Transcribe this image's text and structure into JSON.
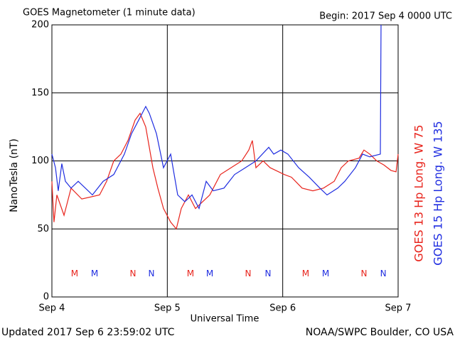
{
  "chart_data": {
    "type": "line",
    "title": "GOES Magnetometer (1 minute data)",
    "subtitle": "Begin:  2017 Sep 4 0000 UTC",
    "y_label": "NanoTesla (nT)",
    "x_label": "Universal Time",
    "footer_left": "Updated 2017 Sep  6 23:59:02 UTC",
    "footer_right": "NOAA/SWPC Boulder, CO USA",
    "xlim": [
      0,
      3
    ],
    "xticks": [
      {
        "value": 0,
        "label": "Sep 4"
      },
      {
        "value": 1,
        "label": "Sep 5"
      },
      {
        "value": 2,
        "label": "Sep 6"
      },
      {
        "value": 3,
        "label": "Sep 7"
      }
    ],
    "ylim": [
      0,
      200
    ],
    "yticks": [
      0,
      50,
      100,
      150,
      200
    ],
    "grid": true,
    "series": [
      {
        "name": "GOES 13 Hp  Long. W 75",
        "color": "#e8241c",
        "x": [
          0,
          0.018,
          0.043,
          0.105,
          0.166,
          0.259,
          0.413,
          0.474,
          0.536,
          0.598,
          0.659,
          0.721,
          0.764,
          0.813,
          0.844,
          0.875,
          0.918,
          0.967,
          1.029,
          1.078,
          1.121,
          1.183,
          1.244,
          1.306,
          1.368,
          1.46,
          1.552,
          1.645,
          1.706,
          1.737,
          1.768,
          1.83,
          1.891,
          2.014,
          2.076,
          2.168,
          2.261,
          2.353,
          2.446,
          2.507,
          2.569,
          2.661,
          2.704,
          2.754,
          2.815,
          2.877,
          2.938,
          2.982,
          3
        ],
        "values": [
          85,
          55,
          75,
          60,
          80,
          72,
          75,
          85,
          100,
          105,
          115,
          130,
          135,
          125,
          110,
          95,
          80,
          65,
          55,
          50,
          65,
          75,
          65,
          70,
          75,
          90,
          95,
          100,
          108,
          115,
          95,
          100,
          95,
          90,
          88,
          80,
          78,
          80,
          85,
          95,
          100,
          102,
          108,
          105,
          100,
          97,
          93,
          92,
          105
        ]
      },
      {
        "name": "GOES 15 Hp  Long. W 135",
        "color": "#1f2de0",
        "x": [
          0,
          0.031,
          0.055,
          0.086,
          0.117,
          0.166,
          0.228,
          0.351,
          0.444,
          0.536,
          0.628,
          0.69,
          0.752,
          0.813,
          0.844,
          0.906,
          0.967,
          1.029,
          1.09,
          1.152,
          1.214,
          1.275,
          1.337,
          1.398,
          1.491,
          1.583,
          1.676,
          1.768,
          1.879,
          1.922,
          1.984,
          2.045,
          2.138,
          2.23,
          2.322,
          2.384,
          2.477,
          2.538,
          2.63,
          2.692,
          2.754,
          2.846,
          2.852
        ],
        "values": [
          105,
          95,
          78,
          98,
          85,
          80,
          85,
          75,
          85,
          90,
          105,
          120,
          130,
          140,
          135,
          120,
          95,
          105,
          75,
          70,
          75,
          65,
          85,
          78,
          80,
          90,
          95,
          100,
          110,
          105,
          108,
          105,
          95,
          88,
          80,
          75,
          80,
          85,
          95,
          105,
          103,
          105,
          200
        ]
      }
    ],
    "annotations": [
      {
        "text": "M",
        "x": 0.197,
        "y": 17,
        "color": "#e8241c"
      },
      {
        "text": "M",
        "x": 0.37,
        "y": 17,
        "color": "#1f2de0"
      },
      {
        "text": "N",
        "x": 0.702,
        "y": 17,
        "color": "#e8241c"
      },
      {
        "text": "N",
        "x": 0.862,
        "y": 17,
        "color": "#1f2de0"
      },
      {
        "text": "M",
        "x": 1.201,
        "y": 17,
        "color": "#e8241c"
      },
      {
        "text": "M",
        "x": 1.368,
        "y": 17,
        "color": "#1f2de0"
      },
      {
        "text": "N",
        "x": 1.7,
        "y": 17,
        "color": "#e8241c"
      },
      {
        "text": "N",
        "x": 1.873,
        "y": 17,
        "color": "#1f2de0"
      },
      {
        "text": "M",
        "x": 2.199,
        "y": 17,
        "color": "#e8241c"
      },
      {
        "text": "M",
        "x": 2.372,
        "y": 17,
        "color": "#1f2de0"
      },
      {
        "text": "N",
        "x": 2.704,
        "y": 17,
        "color": "#e8241c"
      },
      {
        "text": "N",
        "x": 2.871,
        "y": 17,
        "color": "#1f2de0"
      }
    ]
  }
}
